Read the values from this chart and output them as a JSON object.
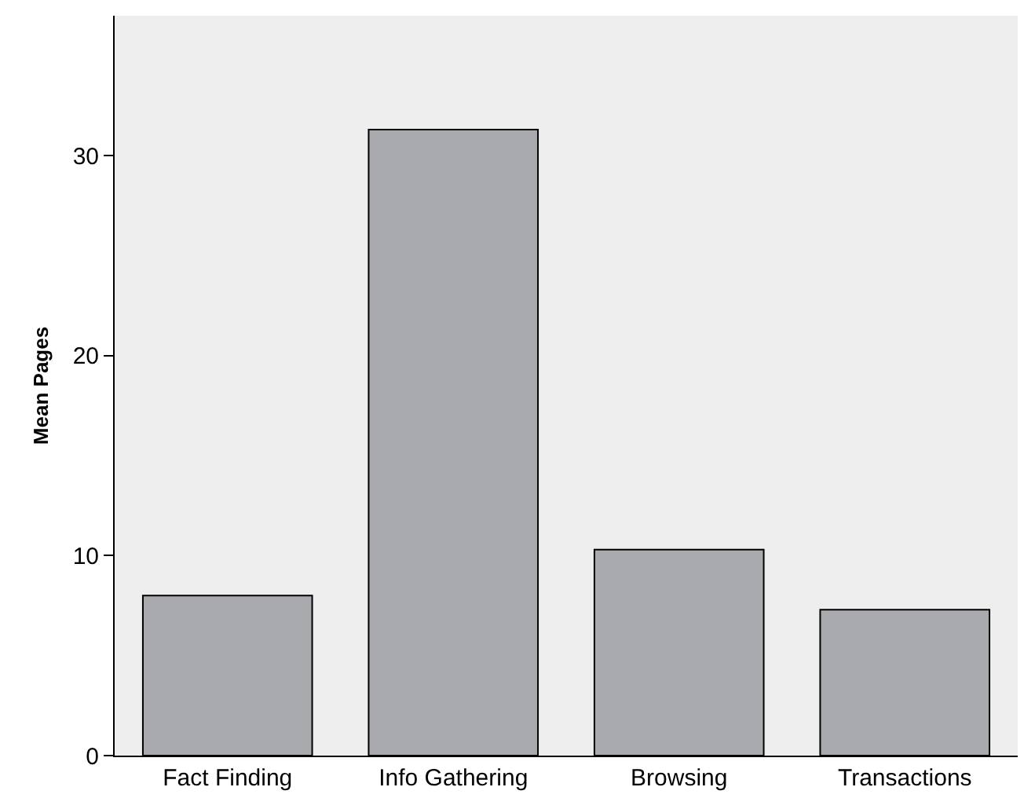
{
  "chart_data": {
    "type": "bar",
    "ylabel": "Mean Pages",
    "categories": [
      "Fact Finding",
      "Info Gathering",
      "Browsing",
      "Transactions"
    ],
    "values": [
      8.0,
      31.3,
      10.3,
      7.3
    ],
    "color": "#a9aaae",
    "ylim": [
      0,
      37
    ],
    "yticks": [
      0,
      10,
      20,
      30
    ],
    "grid": false
  }
}
